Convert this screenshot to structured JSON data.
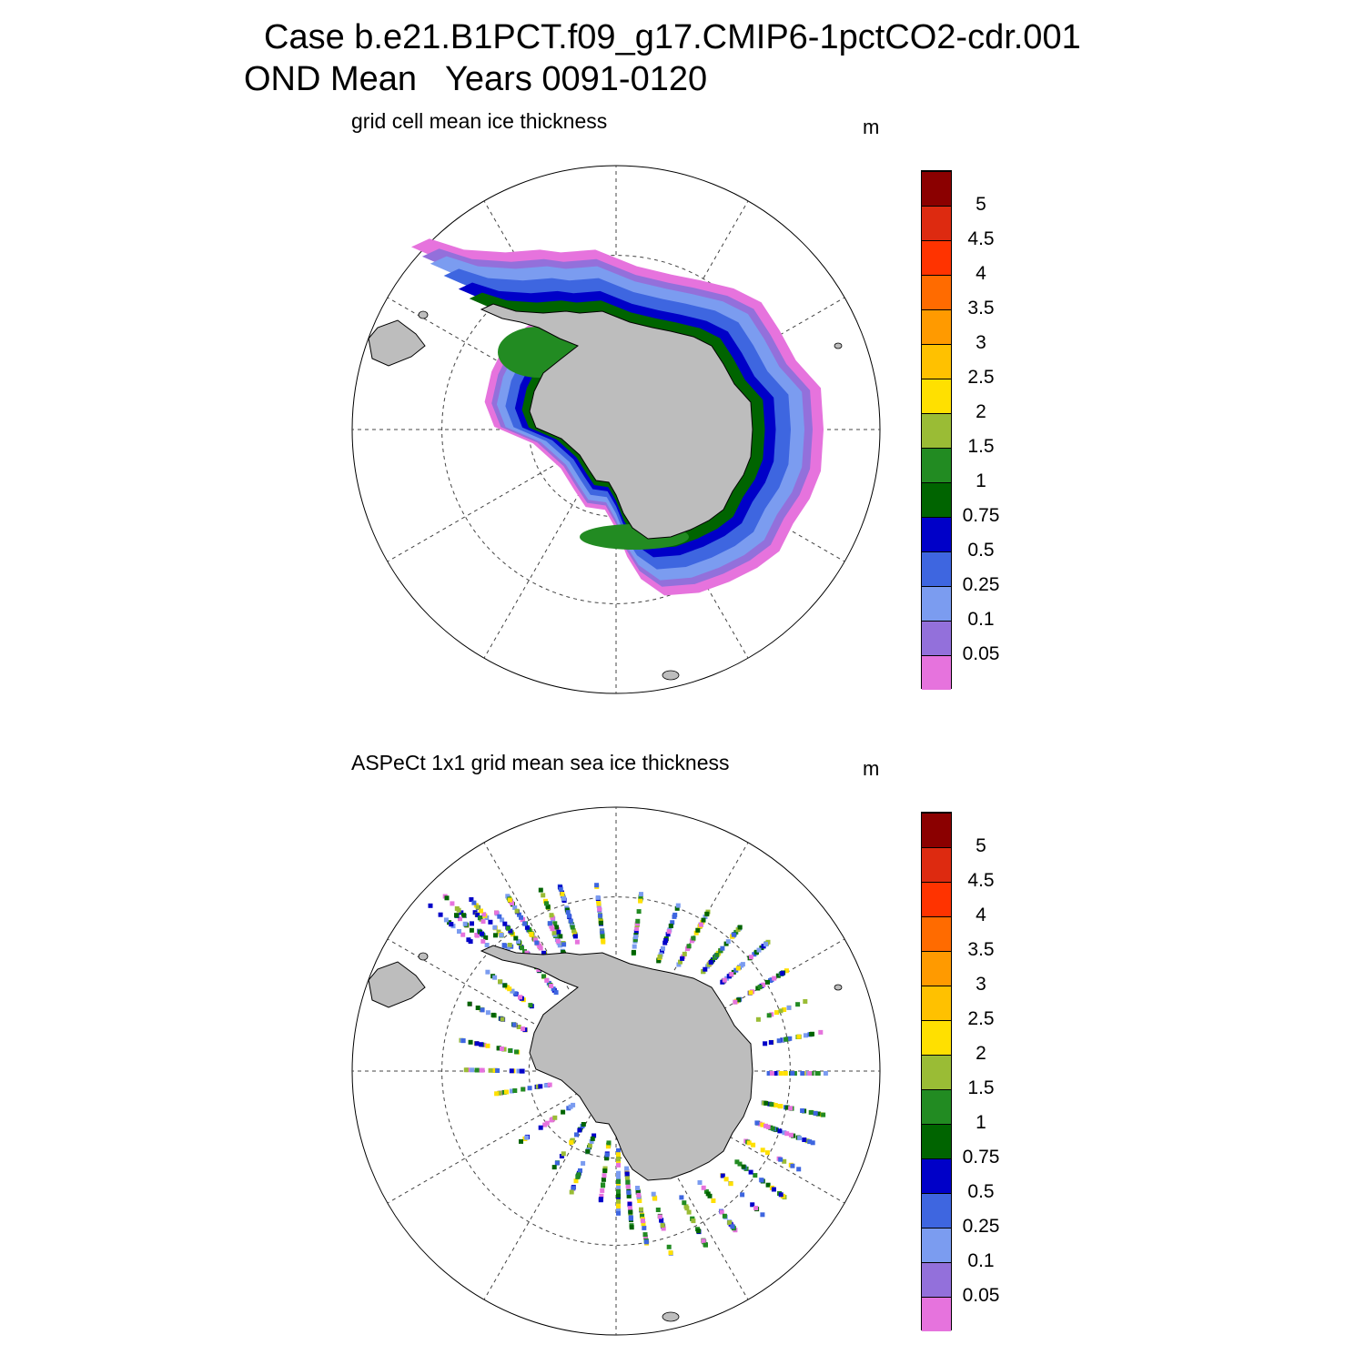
{
  "title": {
    "line1": "Case b.e21.B1PCT.f09_g17.CMIP6-1pctCO2-cdr.001",
    "line2": "OND Mean   Years 0091-0120"
  },
  "colors": {
    "land": "#bdbdbd",
    "grid": "#444444",
    "scale": [
      "#e673dd",
      "#9370db",
      "#7b9cf0",
      "#3e66e0",
      "#0000c8",
      "#006400",
      "#228b22",
      "#9abc35",
      "#ffe000",
      "#ffc100",
      "#ff9a00",
      "#ff6b00",
      "#ff3300",
      "#dd2a10",
      "#8b0000"
    ]
  },
  "colorbar_labels": [
    "0.05",
    "0.1",
    "0.25",
    "0.5",
    "0.75",
    "1",
    "1.5",
    "2",
    "2.5",
    "3",
    "3.5",
    "4",
    "4.5",
    "5"
  ],
  "panels": [
    {
      "id": "model",
      "subtitle": "grid cell mean ice thickness",
      "unit": "m"
    },
    {
      "id": "obs",
      "subtitle": "ASPeCt 1x1 grid mean sea ice thickness",
      "unit": "m"
    }
  ]
}
